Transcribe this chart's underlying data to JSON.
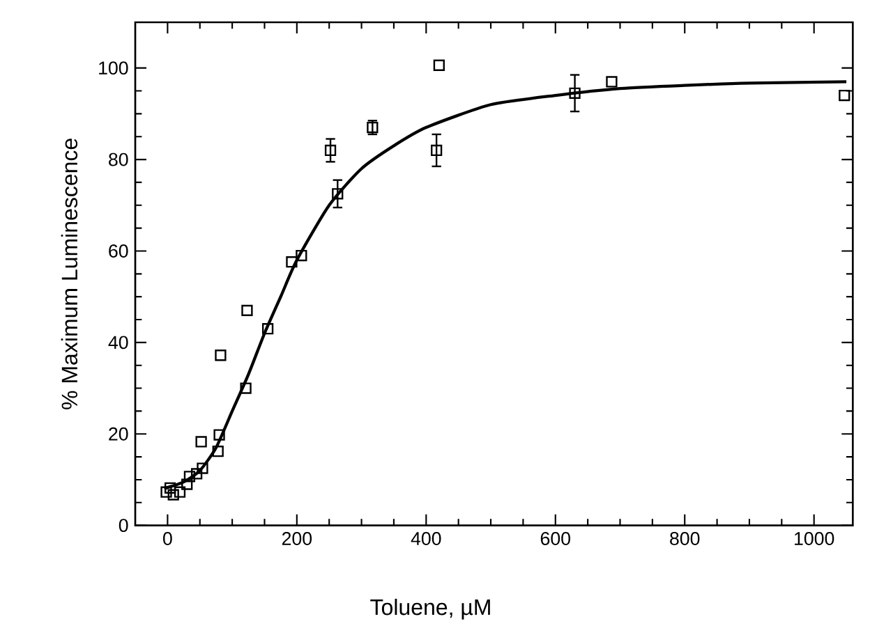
{
  "chart_data": {
    "type": "scatter",
    "xlabel": "Toluene, µM",
    "ylabel": "% Maximum Luminescence",
    "xlim": [
      -50,
      1060
    ],
    "ylim": [
      0,
      110
    ],
    "xticks": [
      0,
      200,
      400,
      600,
      800,
      1000
    ],
    "yticks": [
      0,
      20,
      40,
      60,
      80,
      100
    ],
    "grid": false,
    "marker": "square",
    "series": [
      {
        "color": "#000000",
        "x": [
          -2,
          4,
          9,
          19,
          30,
          34,
          45,
          52,
          54,
          78,
          80,
          82,
          121,
          123,
          155,
          192,
          207,
          252,
          263,
          317,
          416,
          420,
          630,
          687,
          1047
        ],
        "values": [
          7.3,
          8.2,
          6.7,
          7.3,
          9,
          10.7,
          11.3,
          18.3,
          12.5,
          16.2,
          19.8,
          37.2,
          30,
          47,
          43,
          57.6,
          59,
          82,
          72.5,
          87,
          82,
          100.6,
          94.5,
          97,
          94
        ],
        "errors": [
          null,
          null,
          null,
          null,
          null,
          null,
          null,
          null,
          null,
          null,
          null,
          null,
          null,
          null,
          null,
          null,
          null,
          2.5,
          3,
          1.5,
          3.5,
          null,
          4,
          null,
          null
        ]
      },
      {
        "type": "line",
        "color": "#000000",
        "marker": "none",
        "line_style": "solid",
        "x": [
          -5,
          0,
          25,
          50,
          75,
          100,
          125,
          150,
          175,
          200,
          250,
          300,
          350,
          400,
          500,
          600,
          700,
          800,
          900,
          1050
        ],
        "values": [
          8,
          8.3,
          9.5,
          12,
          17,
          25,
          33,
          42,
          50,
          58,
          70,
          78,
          83,
          87,
          92,
          94,
          95.5,
          96.2,
          96.7,
          97
        ]
      }
    ]
  }
}
